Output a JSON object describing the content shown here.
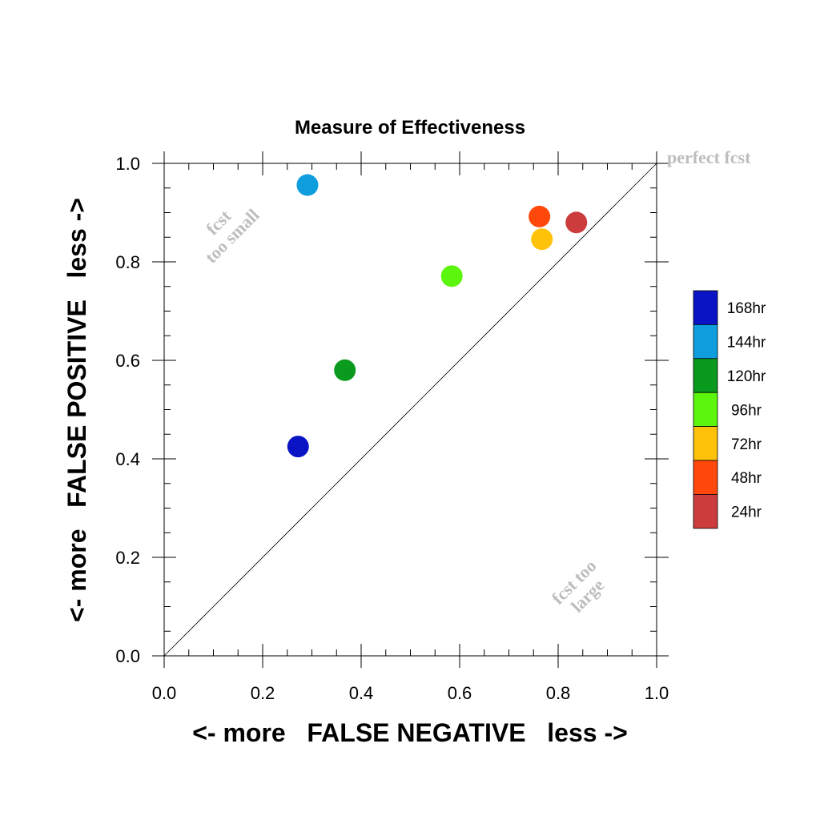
{
  "chart_data": {
    "type": "scatter",
    "title": "Measure of Effectiveness",
    "xlabel": "<- more   FALSE NEGATIVE   less ->",
    "ylabel": "<- more   FALSE POSITIVE   less ->",
    "xlim": [
      0,
      1
    ],
    "ylim": [
      0,
      1
    ],
    "x_ticks": [
      "0.0",
      "0.2",
      "0.4",
      "0.6",
      "0.8",
      "1.0"
    ],
    "y_ticks": [
      "0.0",
      "0.2",
      "0.4",
      "0.6",
      "0.8",
      "1.0"
    ],
    "grid": false,
    "diagonal_line": true,
    "annotations": {
      "perfect": "perfect fcst",
      "too_small": [
        "fcst",
        "too small"
      ],
      "too_large": [
        "fcst too",
        "large"
      ]
    },
    "legend_position": "right",
    "series": [
      {
        "name": "168hr",
        "color": "#0a14c4",
        "x": 0.272,
        "y": 0.425
      },
      {
        "name": "144hr",
        "color": "#0e9ede",
        "x": 0.291,
        "y": 0.956
      },
      {
        "name": "120hr",
        "color": "#0a9a1e",
        "x": 0.367,
        "y": 0.58
      },
      {
        "name": "96hr",
        "color": "#5cf50e",
        "x": 0.584,
        "y": 0.771
      },
      {
        "name": "72hr",
        "color": "#ffc20a",
        "x": 0.767,
        "y": 0.846
      },
      {
        "name": "48hr",
        "color": "#ff480a",
        "x": 0.762,
        "y": 0.892
      },
      {
        "name": "24hr",
        "color": "#cc3c3c",
        "x": 0.837,
        "y": 0.88
      }
    ]
  }
}
